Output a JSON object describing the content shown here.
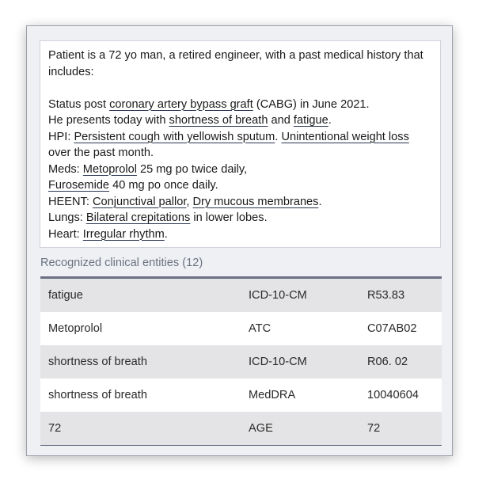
{
  "note": {
    "line1": "Patient is a 72 yo man, a retired engineer, with a past medical history that includes:",
    "status": {
      "pre": "Status post ",
      "ent": "coronary artery bypass graft",
      "post": " (CABG) in June 2021."
    },
    "presents": {
      "pre": "He presents today with ",
      "ent1": "shortness of breath",
      "mid": " and ",
      "ent2": "fatigue",
      "post": "."
    },
    "hpi": {
      "pre": "HPI: ",
      "ent1": "Persistent cough with yellowish sputum",
      "mid": ". ",
      "ent2": "Unintentional weight loss ",
      "post": "over the past month."
    },
    "meds": {
      "pre": "Meds: ",
      "ent": "Metoprolol",
      "post": " 25 mg po twice daily,"
    },
    "meds2": {
      "ent": "Furosemide",
      "post": " 40 mg po once daily."
    },
    "heent": {
      "pre": "HEENT: ",
      "ent1": "Conjunctival pallor",
      "mid": ", ",
      "ent2": "Dry mucous membranes",
      "post": "."
    },
    "lungs": {
      "pre": "Lungs: ",
      "ent": "Bilateral crepitations",
      "post": " in lower lobes."
    },
    "heart": {
      "pre": "Heart: ",
      "ent": "Irregular rhythm",
      "post": "."
    }
  },
  "entities": {
    "title": "Recognized clinical entities (12)",
    "rows": [
      {
        "text": "fatigue",
        "system": "ICD-10-CM",
        "code": "R53.83"
      },
      {
        "text": "Metoprolol",
        "system": "ATC",
        "code": "C07AB02"
      },
      {
        "text": "shortness of breath",
        "system": "ICD-10-CM",
        "code": "R06. 02"
      },
      {
        "text": "shortness of breath",
        "system": "MedDRA",
        "code": "10040604"
      },
      {
        "text": "72",
        "system": "AGE",
        "code": "72"
      }
    ]
  }
}
